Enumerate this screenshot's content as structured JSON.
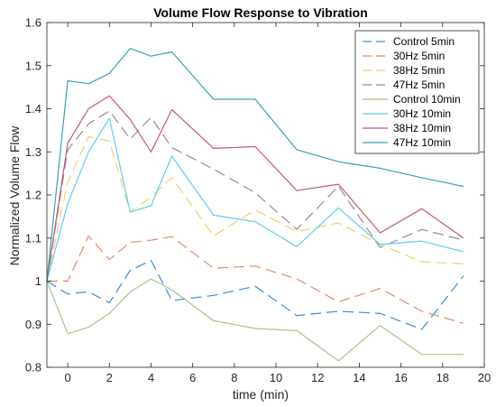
{
  "chart_data": {
    "type": "line",
    "title": "Volume Flow Response to Vibration",
    "xlabel": "time (min)",
    "ylabel": "Normalized Volume Flow",
    "xlim": [
      -1,
      20
    ],
    "ylim": [
      0.8,
      1.6
    ],
    "xticks": [
      0,
      2,
      4,
      6,
      8,
      10,
      12,
      14,
      16,
      18,
      20
    ],
    "yticks": [
      0.8,
      0.9,
      1,
      1.1,
      1.2,
      1.3,
      1.4,
      1.5,
      1.6
    ],
    "grid": false,
    "legend_position": "top-right",
    "series": [
      {
        "name": "Control 5min",
        "color": "#3a8fd6",
        "dash": "long-dash",
        "x": [
          -1,
          0,
          1,
          2,
          3,
          4,
          5,
          7,
          9,
          11,
          13,
          15,
          17,
          19
        ],
        "y": [
          1.0,
          0.97,
          0.975,
          0.95,
          1.025,
          1.048,
          0.955,
          0.967,
          0.988,
          0.92,
          0.93,
          0.925,
          0.888,
          1.012
        ]
      },
      {
        "name": "30Hz 5min",
        "color": "#e38a6e",
        "dash": "long-dash",
        "x": [
          -1,
          0,
          1,
          2,
          3,
          4,
          5,
          7,
          9,
          11,
          13,
          15,
          17,
          19
        ],
        "y": [
          1.0,
          1.0,
          1.105,
          1.05,
          1.09,
          1.095,
          1.103,
          1.03,
          1.035,
          1.005,
          0.952,
          0.983,
          0.93,
          0.902
        ]
      },
      {
        "name": "38Hz 5min",
        "color": "#f0d070",
        "dash": "long-dash",
        "x": [
          -1,
          0,
          1,
          2,
          3,
          4,
          5,
          7,
          9,
          11,
          13,
          15,
          17,
          19
        ],
        "y": [
          1.0,
          1.23,
          1.335,
          1.325,
          1.16,
          1.195,
          1.24,
          1.105,
          1.165,
          1.115,
          1.135,
          1.085,
          1.045,
          1.04
        ]
      },
      {
        "name": "47Hz 5min",
        "color": "#9a8a96",
        "dash": "long-dash",
        "x": [
          -1,
          0,
          1,
          2,
          3,
          4,
          5,
          7,
          9,
          11,
          13,
          15,
          17,
          19
        ],
        "y": [
          1.0,
          1.305,
          1.365,
          1.395,
          1.33,
          1.38,
          1.31,
          1.26,
          1.205,
          1.12,
          1.22,
          1.078,
          1.12,
          1.095
        ]
      },
      {
        "name": "Control 10min",
        "color": "#a8c48a",
        "dash": "solid",
        "x": [
          -1,
          0,
          1,
          2,
          3,
          4,
          5,
          7,
          9,
          11,
          13,
          15,
          17,
          19
        ],
        "y": [
          1.0,
          0.878,
          0.893,
          0.925,
          0.975,
          1.005,
          0.98,
          0.908,
          0.89,
          0.885,
          0.815,
          0.897,
          0.83,
          0.83
        ]
      },
      {
        "name": "30Hz 10min",
        "color": "#5fd0e6",
        "dash": "solid",
        "x": [
          -1,
          0,
          1,
          2,
          3,
          4,
          5,
          7,
          9,
          11,
          13,
          15,
          17,
          19
        ],
        "y": [
          1.0,
          1.18,
          1.3,
          1.378,
          1.16,
          1.175,
          1.29,
          1.153,
          1.138,
          1.08,
          1.17,
          1.085,
          1.093,
          1.068
        ]
      },
      {
        "name": "38Hz 10min",
        "color": "#c05a72",
        "dash": "solid",
        "x": [
          -1,
          0,
          1,
          2,
          3,
          4,
          5,
          7,
          9,
          11,
          13,
          15,
          17,
          19
        ],
        "y": [
          1.0,
          1.32,
          1.4,
          1.43,
          1.375,
          1.3,
          1.398,
          1.308,
          1.312,
          1.21,
          1.225,
          1.112,
          1.168,
          1.1
        ]
      },
      {
        "name": "47Hz 10min",
        "color": "#3aa0b4",
        "dash": "solid",
        "x": [
          -1,
          0,
          1,
          2,
          3,
          4,
          5,
          7,
          9,
          11,
          13,
          15,
          17,
          19
        ],
        "y": [
          1.0,
          1.465,
          1.458,
          1.482,
          1.54,
          1.522,
          1.532,
          1.422,
          1.422,
          1.305,
          1.277,
          1.262,
          1.24,
          1.22
        ]
      }
    ]
  }
}
